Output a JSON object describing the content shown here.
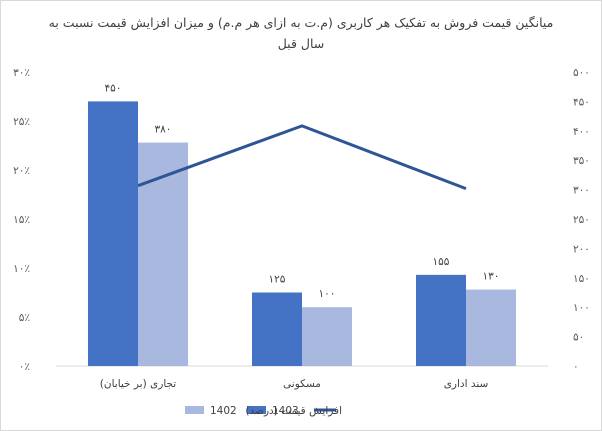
{
  "chart_data": {
    "type": "bar",
    "title_lines": [
      "میانگین قیمت فروش به تفکیک هر کاربری (م.ت به ازای هر م.م) و میزان افزایش قیمت نسبت به",
      "سال قبل"
    ],
    "categories": [
      "تجاری (بر خیابان)",
      "مسکونی",
      "سند اداری"
    ],
    "series": [
      {
        "name": "1403",
        "axis": "right",
        "color": "#4472c4",
        "values": [
          450,
          125,
          155
        ],
        "value_labels": [
          "۴۵۰",
          "۱۲۵",
          "۱۵۵"
        ]
      },
      {
        "name": "1402",
        "axis": "right",
        "color": "#a9b8de",
        "values": [
          380,
          100,
          130
        ],
        "value_labels": [
          "۳۸۰",
          "۱۰۰",
          "۱۳۰"
        ]
      }
    ],
    "line_series": {
      "name": "افزایش قیمت (درصد)",
      "axis": "left",
      "color": "#2f5597",
      "values": [
        18.4,
        24.5,
        18.1
      ]
    },
    "left_axis": {
      "min": 0,
      "max": 30,
      "step": 5,
      "tick_labels": [
        "۰٪",
        "۵٪",
        "۱۰٪",
        "۱۵٪",
        "۲۰٪",
        "۲۵٪",
        "۳۰٪"
      ]
    },
    "right_axis": {
      "min": 0,
      "max": 500,
      "step": 50,
      "tick_labels": [
        "۰",
        "۵۰",
        "۱۰۰",
        "۱۵۰",
        "۲۰۰",
        "۲۵۰",
        "۳۰۰",
        "۳۵۰",
        "۴۰۰",
        "۴۵۰",
        "۵۰۰"
      ]
    },
    "legend": [
      {
        "name": "1402",
        "type": "box",
        "color": "#a9b8de"
      },
      {
        "name": "1403",
        "type": "box",
        "color": "#4472c4"
      },
      {
        "name": "افزایش قیمت (درصد)",
        "type": "line",
        "color": "#2f5597"
      }
    ],
    "legend_position": "bottom",
    "grid": false
  }
}
